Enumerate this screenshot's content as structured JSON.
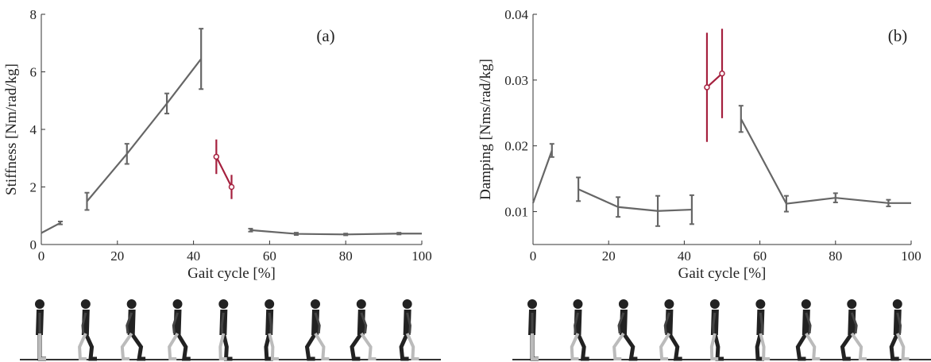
{
  "chart_data": [
    {
      "type": "line",
      "annotation": "(a)",
      "x_label": "Gait cycle [%]",
      "y_label": "Stiffness [Nm/rad/kg]",
      "xlim": [
        0,
        100
      ],
      "xticks": [
        0,
        20,
        40,
        60,
        80,
        100
      ],
      "ylim": [
        0,
        8
      ],
      "yticks": [
        0,
        2,
        4,
        6,
        8
      ],
      "series": [
        {
          "color": "#666666",
          "x": [
            0,
            5
          ],
          "values": [
            0.4,
            0.75
          ],
          "errors": [
            null,
            0.05
          ]
        },
        {
          "color": "#666666",
          "x": [
            12,
            22.5,
            33,
            42
          ],
          "values": [
            1.5,
            3.15,
            4.9,
            6.45
          ],
          "errors": [
            0.3,
            0.35,
            0.35,
            1.05
          ]
        },
        {
          "color": "#a5203e",
          "marker": "circle",
          "x": [
            46,
            50
          ],
          "values": [
            3.05,
            2.0
          ],
          "errors": [
            0.6,
            0.42
          ]
        },
        {
          "color": "#666666",
          "x": [
            55,
            67,
            80,
            94,
            100
          ],
          "values": [
            0.5,
            0.37,
            0.35,
            0.38,
            0.38
          ],
          "errors": [
            0.05,
            0.04,
            0.03,
            0.03,
            null
          ]
        }
      ]
    },
    {
      "type": "line",
      "annotation": "(b)",
      "x_label": "Gait cycle [%]",
      "y_label": "Damping [Nms/rad/kg]",
      "xlim": [
        0,
        100
      ],
      "xticks": [
        0,
        20,
        40,
        60,
        80,
        100
      ],
      "ylim": [
        0.005,
        0.04
      ],
      "yticks": [
        0.01,
        0.02,
        0.03,
        0.04
      ],
      "series": [
        {
          "color": "#666666",
          "x": [
            0,
            5
          ],
          "values": [
            0.0113,
            0.0193
          ],
          "errors": [
            null,
            0.001
          ]
        },
        {
          "color": "#666666",
          "x": [
            12,
            22.5,
            33,
            42
          ],
          "values": [
            0.0134,
            0.0107,
            0.0101,
            0.0103
          ],
          "errors": [
            0.0018,
            0.0015,
            0.0023,
            0.0022
          ]
        },
        {
          "color": "#a5203e",
          "marker": "circle",
          "x": [
            46,
            50
          ],
          "values": [
            0.0289,
            0.031
          ],
          "errors": [
            0.0083,
            0.0068
          ]
        },
        {
          "color": "#666666",
          "x": [
            55,
            67,
            80,
            94,
            100
          ],
          "values": [
            0.0241,
            0.0112,
            0.0121,
            0.0113,
            0.0113
          ],
          "errors": [
            0.002,
            0.0012,
            0.0007,
            0.0005,
            null
          ]
        }
      ]
    }
  ]
}
